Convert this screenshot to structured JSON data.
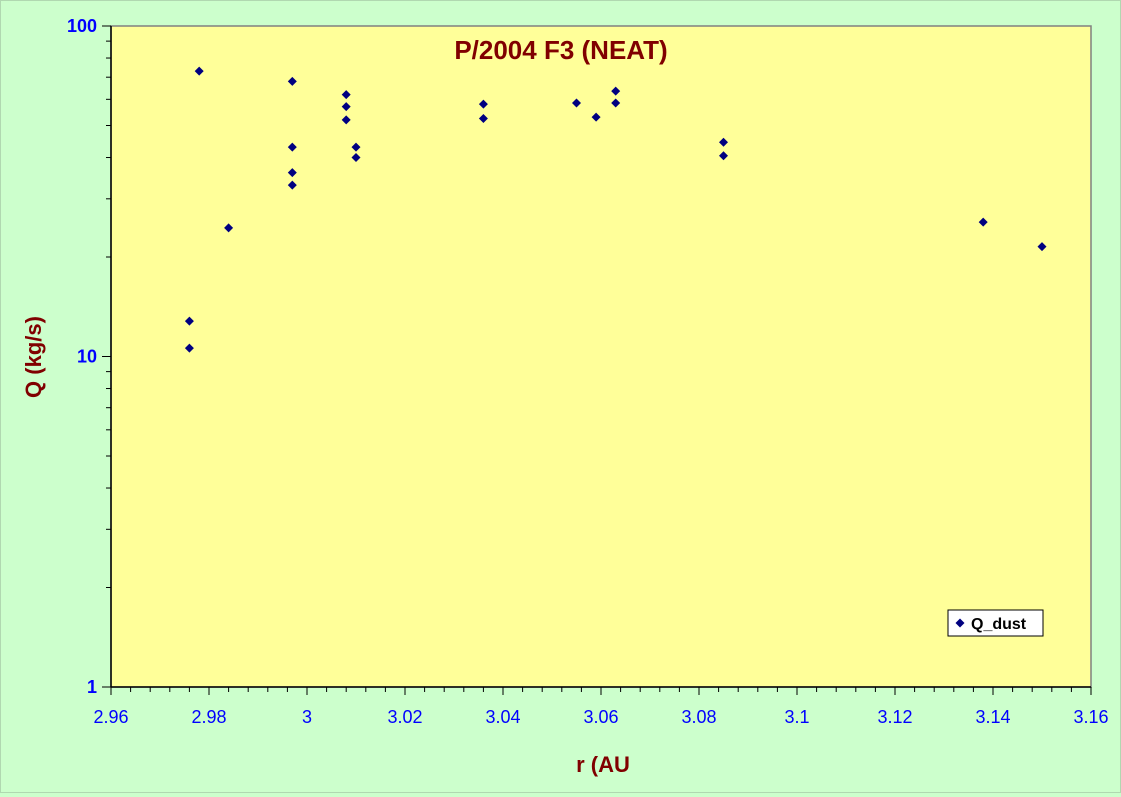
{
  "chart_data": {
    "type": "scatter",
    "title": "P/2004 F3 (NEAT)",
    "xlabel": "r (AU",
    "ylabel": "Q (kg/s)",
    "xlim": [
      2.96,
      3.16
    ],
    "ylim": [
      1,
      100
    ],
    "y_scale": "log",
    "x_ticks": [
      "2.96",
      "2.98",
      "3",
      "3.02",
      "3.04",
      "3.06",
      "3.08",
      "3.1",
      "3.12",
      "3.14",
      "3.16"
    ],
    "y_ticks": [
      "1",
      "10",
      "100"
    ],
    "legend_position": "bottom-right",
    "grid": false,
    "colors": {
      "plot_background": "#ffff99",
      "page_background": "#ccffcc",
      "marker": "#000080",
      "title": "#800000",
      "axis_labels": "#800000",
      "tick_labels": "#0000ff"
    },
    "series": [
      {
        "name": "Q_dust",
        "marker": "diamond",
        "points": [
          {
            "x": 2.976,
            "y": 12.8
          },
          {
            "x": 2.976,
            "y": 10.6
          },
          {
            "x": 2.978,
            "y": 73
          },
          {
            "x": 2.984,
            "y": 24.5
          },
          {
            "x": 2.997,
            "y": 68
          },
          {
            "x": 2.997,
            "y": 43
          },
          {
            "x": 2.997,
            "y": 36
          },
          {
            "x": 2.997,
            "y": 33
          },
          {
            "x": 3.008,
            "y": 62
          },
          {
            "x": 3.008,
            "y": 57
          },
          {
            "x": 3.008,
            "y": 52
          },
          {
            "x": 3.01,
            "y": 43
          },
          {
            "x": 3.01,
            "y": 40
          },
          {
            "x": 3.036,
            "y": 58
          },
          {
            "x": 3.036,
            "y": 52.5
          },
          {
            "x": 3.055,
            "y": 58.5
          },
          {
            "x": 3.059,
            "y": 53
          },
          {
            "x": 3.063,
            "y": 63.5
          },
          {
            "x": 3.063,
            "y": 58.5
          },
          {
            "x": 3.085,
            "y": 44.5
          },
          {
            "x": 3.085,
            "y": 40.5
          },
          {
            "x": 3.138,
            "y": 25.5
          },
          {
            "x": 3.15,
            "y": 21.5
          }
        ]
      }
    ]
  }
}
